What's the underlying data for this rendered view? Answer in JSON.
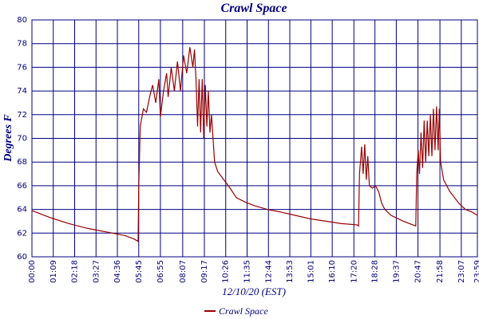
{
  "chart_data": {
    "type": "line",
    "title": "Crawl Space",
    "ylabel": "Degrees F",
    "xlabel": "12/10/20 (EST)",
    "x": [
      0,
      60,
      120,
      180,
      240,
      300,
      330,
      343,
      345,
      350,
      360,
      370,
      380,
      390,
      400,
      410,
      415,
      425,
      435,
      440,
      450,
      460,
      470,
      480,
      490,
      500,
      510,
      520,
      525,
      530,
      535,
      540,
      545,
      550,
      555,
      560,
      565,
      570,
      575,
      580,
      590,
      600,
      620,
      640,
      660,
      690,
      720,
      760,
      800,
      850,
      900,
      950,
      1000,
      1050,
      1055,
      1058,
      1065,
      1070,
      1075,
      1080,
      1085,
      1090,
      1100,
      1110,
      1120,
      1130,
      1140,
      1160,
      1200,
      1230,
      1240,
      1243,
      1248,
      1252,
      1257,
      1262,
      1267,
      1272,
      1277,
      1282,
      1287,
      1292,
      1297,
      1302,
      1307,
      1312,
      1316,
      1320,
      1330,
      1350,
      1380,
      1400,
      1420,
      1439
    ],
    "series": [
      {
        "name": "Crawl Space",
        "color": "#990000",
        "values": [
          63.9,
          63.3,
          62.8,
          62.4,
          62.1,
          61.8,
          61.5,
          61.3,
          66,
          71,
          72.5,
          72.2,
          73.5,
          74.5,
          73,
          75,
          71.8,
          74,
          75.5,
          73.5,
          76,
          74,
          76.5,
          74,
          77,
          75.5,
          77.7,
          76,
          77.5,
          75,
          71,
          75,
          70.5,
          75,
          70,
          74.5,
          71,
          74,
          70.5,
          72,
          68,
          67.2,
          66.5,
          65.8,
          65,
          64.6,
          64.3,
          64,
          63.8,
          63.5,
          63.2,
          63,
          62.8,
          62.7,
          62.6,
          67,
          69.3,
          67,
          69.5,
          66.5,
          68.5,
          66,
          65.8,
          66,
          65.5,
          64.5,
          64,
          63.5,
          63,
          62.7,
          62.6,
          67,
          69,
          67,
          70.5,
          67.5,
          71.5,
          68,
          71.5,
          68.5,
          72,
          68.5,
          72.5,
          69,
          72.7,
          69,
          72.5,
          68,
          66.5,
          65.5,
          64.5,
          64,
          63.8,
          63.5
        ]
      }
    ],
    "xlim": [
      0,
      1439
    ],
    "xticks": [
      {
        "value": 0,
        "label": "00:00"
      },
      {
        "value": 69,
        "label": "01:09"
      },
      {
        "value": 138,
        "label": "02:18"
      },
      {
        "value": 207,
        "label": "03:27"
      },
      {
        "value": 276,
        "label": "04:36"
      },
      {
        "value": 345,
        "label": "05:45"
      },
      {
        "value": 415,
        "label": "06:55"
      },
      {
        "value": 487,
        "label": "08:07"
      },
      {
        "value": 557,
        "label": "09:17"
      },
      {
        "value": 626,
        "label": "10:26"
      },
      {
        "value": 695,
        "label": "11:35"
      },
      {
        "value": 764,
        "label": "12:44"
      },
      {
        "value": 833,
        "label": "13:53"
      },
      {
        "value": 901,
        "label": "15:01"
      },
      {
        "value": 970,
        "label": "16:10"
      },
      {
        "value": 1040,
        "label": "17:20"
      },
      {
        "value": 1108,
        "label": "18:28"
      },
      {
        "value": 1177,
        "label": "19:37"
      },
      {
        "value": 1247,
        "label": "20:47"
      },
      {
        "value": 1318,
        "label": "21:58"
      },
      {
        "value": 1387,
        "label": "23:07"
      },
      {
        "value": 1439,
        "label": "23:59"
      }
    ],
    "ylim": [
      60,
      80
    ],
    "yticks": [
      60,
      62,
      64,
      66,
      68,
      70,
      72,
      74,
      76,
      78,
      80
    ],
    "grid": true
  }
}
